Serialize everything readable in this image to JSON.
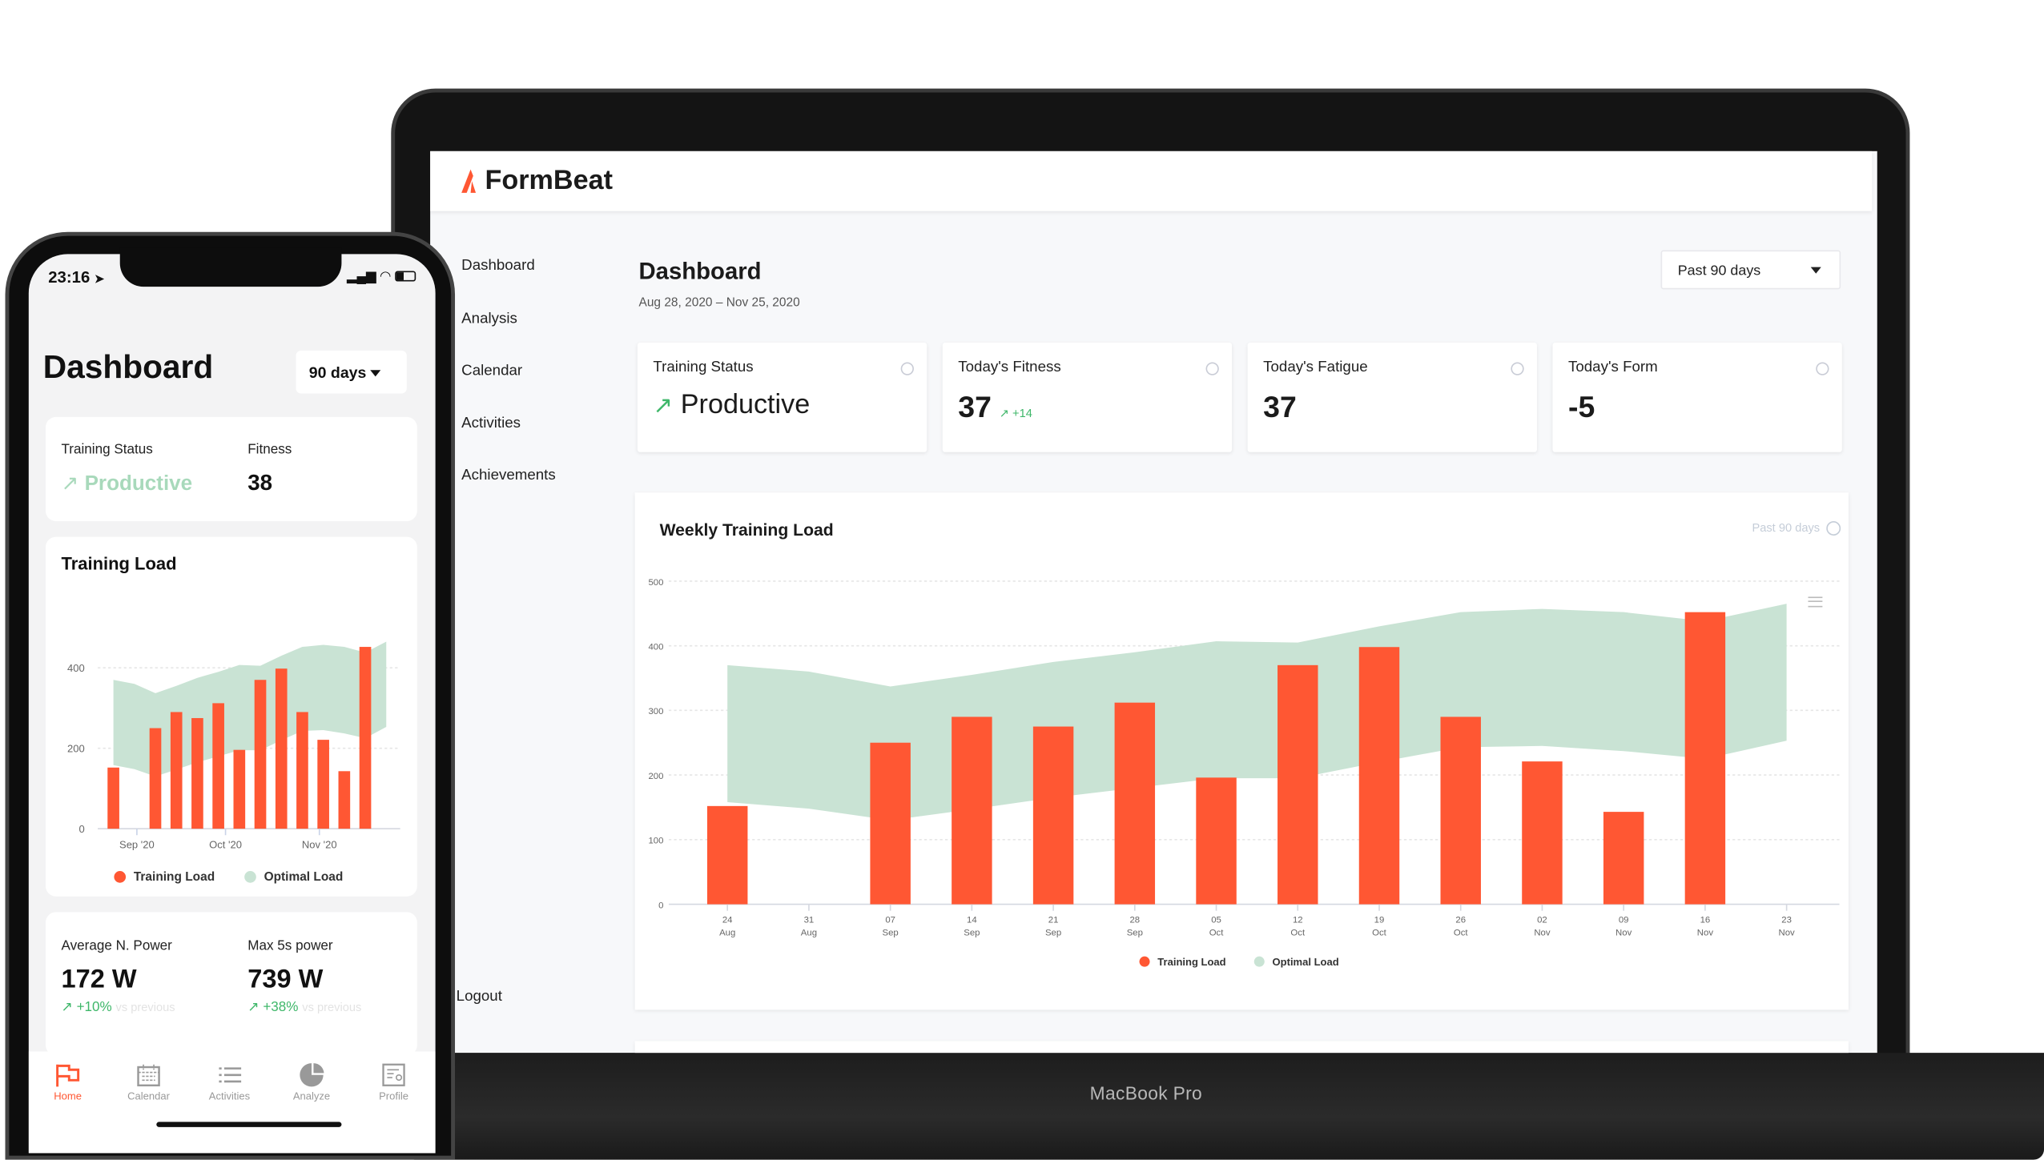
{
  "laptop": {
    "brand": "FormBeat",
    "device_label": "MacBook Pro",
    "sidebar": {
      "items": [
        {
          "label": "Dashboard"
        },
        {
          "label": "Analysis"
        },
        {
          "label": "Calendar"
        },
        {
          "label": "Activities"
        },
        {
          "label": "Achievements"
        }
      ],
      "logout": "Logout"
    },
    "page_title": "Dashboard",
    "date_range": "Aug 28, 2020 – Nov 25, 2020",
    "period_select": "Past 90 days",
    "kpis": [
      {
        "label": "Training Status",
        "value": "Productive",
        "trend": "up"
      },
      {
        "label": "Today's Fitness",
        "value": "37",
        "delta": "+14"
      },
      {
        "label": "Today's Fatigue",
        "value": "37"
      },
      {
        "label": "Today's Form",
        "value": "-5"
      }
    ],
    "chart_card": {
      "title": "Weekly Training Load",
      "period": "Past 90 days"
    }
  },
  "phone": {
    "time": "23:16",
    "page_title": "Dashboard",
    "period_select": "90 days",
    "status": {
      "label": "Training Status",
      "value": "Productive",
      "fitness_label": "Fitness",
      "fitness_value": "38"
    },
    "chart_title": "Training Load",
    "power": [
      {
        "label": "Average N. Power",
        "value": "172 W",
        "delta": "+10%",
        "suffix": "vs previous"
      },
      {
        "label": "Max 5s power",
        "value": "739 W",
        "delta": "+38%",
        "suffix": "vs previous"
      }
    ],
    "tabs": [
      {
        "label": "Home",
        "icon": "flag-icon"
      },
      {
        "label": "Calendar",
        "icon": "calendar-icon"
      },
      {
        "label": "Activities",
        "icon": "list-icon"
      },
      {
        "label": "Analyze",
        "icon": "pie-icon"
      },
      {
        "label": "Profile",
        "icon": "profile-icon"
      }
    ]
  },
  "colors": {
    "accent": "#ff5733",
    "optimal": "#c9e3d4",
    "green": "#3fb76a"
  },
  "chart_data": [
    {
      "type": "bar",
      "title": "Weekly Training Load",
      "categories": [
        "24 Aug",
        "31 Aug",
        "07 Sep",
        "14 Sep",
        "21 Sep",
        "28 Sep",
        "05 Oct",
        "12 Oct",
        "19 Oct",
        "26 Oct",
        "02 Nov",
        "09 Nov",
        "16 Nov",
        "23 Nov"
      ],
      "series": [
        {
          "name": "Training Load",
          "type": "bar",
          "values": [
            152,
            0,
            250,
            290,
            275,
            312,
            196,
            370,
            398,
            290,
            221,
            143,
            452,
            0
          ]
        },
        {
          "name": "Optimal Load",
          "type": "area-range",
          "upper": [
            370,
            360,
            337,
            355,
            375,
            390,
            407,
            405,
            430,
            452,
            457,
            452,
            438,
            465
          ],
          "lower": [
            158,
            148,
            130,
            147,
            165,
            180,
            195,
            195,
            220,
            243,
            245,
            237,
            225,
            253
          ]
        }
      ],
      "yticks": [
        0,
        100,
        200,
        300,
        400,
        500
      ],
      "ylim": [
        0,
        500
      ],
      "grid": true,
      "legend": "bottom"
    },
    {
      "type": "bar",
      "title": "Training Load",
      "categories": [
        "24 Aug",
        "31 Aug",
        "07 Sep",
        "14 Sep",
        "21 Sep",
        "28 Sep",
        "05 Oct",
        "12 Oct",
        "19 Oct",
        "26 Oct",
        "02 Nov",
        "09 Nov",
        "16 Nov",
        "23 Nov"
      ],
      "xtick_labels": [
        "Sep '20",
        "Oct '20",
        "Nov '20"
      ],
      "series": [
        {
          "name": "Training Load",
          "type": "bar",
          "values": [
            152,
            0,
            250,
            290,
            275,
            312,
            196,
            370,
            398,
            290,
            221,
            143,
            452,
            0
          ]
        },
        {
          "name": "Optimal Load",
          "type": "area-range",
          "upper": [
            370,
            360,
            337,
            355,
            375,
            390,
            407,
            405,
            430,
            452,
            457,
            452,
            438,
            465
          ],
          "lower": [
            158,
            148,
            130,
            147,
            165,
            180,
            195,
            195,
            220,
            243,
            245,
            237,
            225,
            253
          ]
        }
      ],
      "yticks": [
        0,
        200,
        400
      ],
      "ylim": [
        0,
        460
      ],
      "grid": true,
      "legend": "bottom"
    }
  ]
}
